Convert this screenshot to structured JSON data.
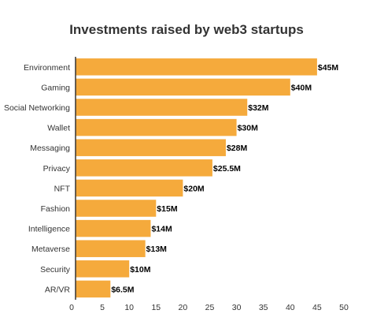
{
  "chart_data": {
    "type": "bar",
    "orientation": "horizontal",
    "title": "Investments raised by web3 startups",
    "categories": [
      "Environment",
      "Gaming",
      "Social Networking",
      "Wallet",
      "Messaging",
      "Privacy",
      "NFT",
      "Fashion",
      "Intelligence",
      "Metaverse",
      "Security",
      "AR/VR"
    ],
    "values": [
      45,
      40,
      32,
      30,
      28,
      25.5,
      20,
      15,
      14,
      13,
      10,
      6.5
    ],
    "data_labels": [
      "$45M",
      "$40M",
      "$32M",
      "$30M",
      "$28M",
      "$25.5M",
      "$20M",
      "$15M",
      "$14M",
      "$13M",
      "$10M",
      "$6.5M"
    ],
    "xlim": [
      0,
      50
    ],
    "xticks": [
      "0",
      "5",
      "10",
      "15",
      "20",
      "25",
      "30",
      "35",
      "40",
      "45",
      "50"
    ],
    "xlabel": "",
    "ylabel": "",
    "grid": false,
    "colors": {
      "bar": "#F5AA3C",
      "axis": "#333333",
      "text": "#333333"
    }
  }
}
